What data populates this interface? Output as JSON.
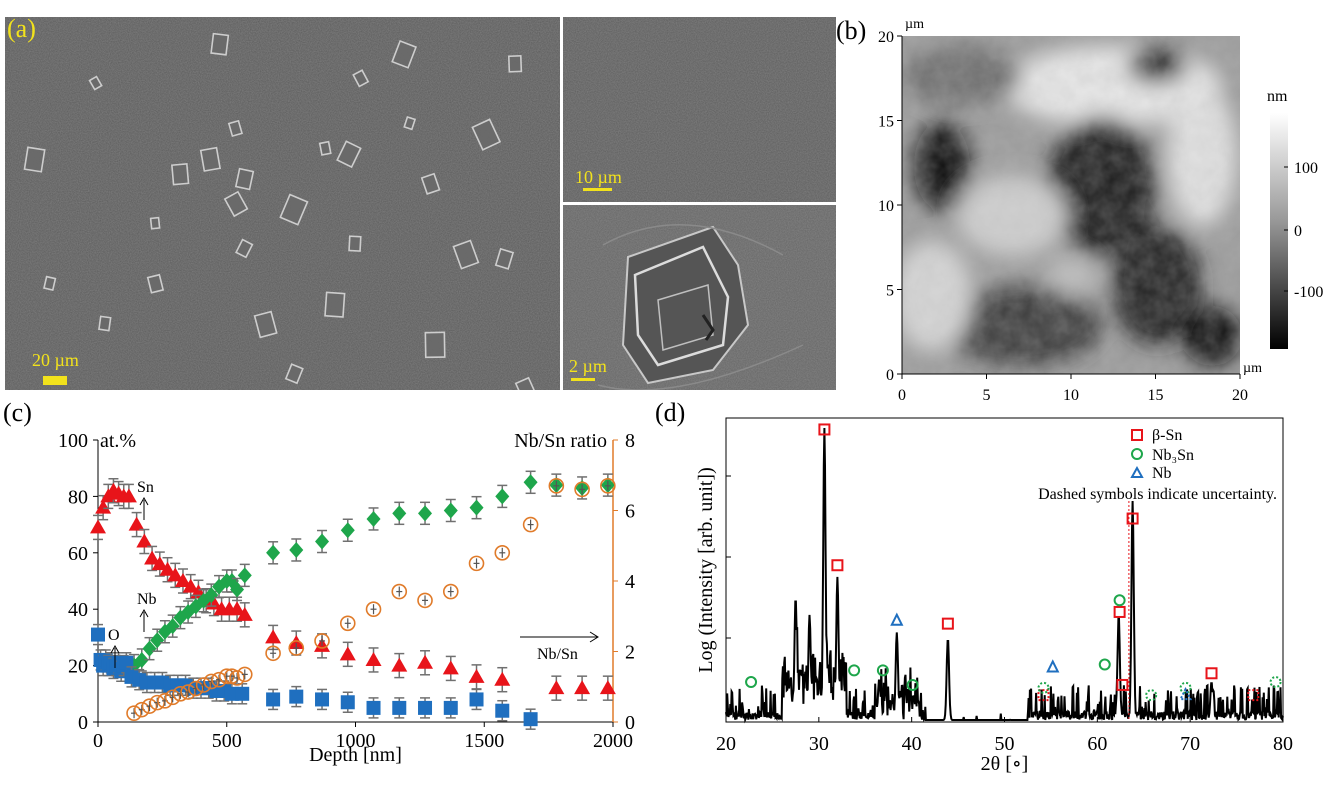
{
  "panels": {
    "a": {
      "label": "(a)",
      "scale_main": "20 µm",
      "scale_top_right": "10 µm",
      "scale_bottom_right": "2 µm"
    },
    "b": {
      "label": "(b)",
      "y_unit": "µm",
      "x_unit": "µm",
      "colorbar_unit": "nm",
      "x_ticks": [
        "0",
        "5",
        "10",
        "15",
        "20"
      ],
      "y_ticks": [
        "0",
        "5",
        "10",
        "15",
        "20"
      ],
      "colorbar_ticks": [
        "100",
        "0",
        "-100"
      ]
    },
    "c": {
      "label": "(c)"
    },
    "d": {
      "label": "(d)"
    }
  },
  "colors": {
    "sn": "#e8141a",
    "nb": "#1ea64b",
    "o": "#1f6fbf",
    "ratio": "#e07b2a",
    "err": "#707070",
    "beta_sn": "#e8141a",
    "nb3sn": "#1ea64b",
    "nb_marker": "#1f6fbf"
  },
  "chart_data": [
    {
      "type": "scatter",
      "panel": "c",
      "xlabel": "Depth [nm]",
      "ylabel": "at.%",
      "y2label": "Nb/Sn ratio",
      "xlim": [
        0,
        2000
      ],
      "ylim": [
        0,
        100
      ],
      "y2lim": [
        0,
        8
      ],
      "x_ticks": [
        "0",
        "500",
        "1000",
        "1500",
        "2000"
      ],
      "y_ticks": [
        "0",
        "20",
        "40",
        "60",
        "80",
        "100"
      ],
      "y2_ticks": [
        "0",
        "2",
        "4",
        "6",
        "8"
      ],
      "annotations": [
        "Sn",
        "Nb",
        "O",
        "Nb/Sn"
      ],
      "series": [
        {
          "name": "Sn",
          "marker": "triangle",
          "axis": "left",
          "x": [
            0,
            20,
            40,
            60,
            80,
            100,
            120,
            150,
            180,
            210,
            240,
            270,
            300,
            330,
            360,
            390,
            420,
            450,
            480,
            510,
            540,
            570,
            680,
            770,
            870,
            970,
            1070,
            1170,
            1270,
            1370,
            1470,
            1570,
            1780,
            1880,
            1980
          ],
          "y": [
            69,
            76,
            80,
            82,
            81,
            80,
            80,
            70,
            64,
            58,
            56,
            54,
            52,
            50,
            48,
            46,
            43,
            42,
            40,
            40,
            40,
            38,
            30,
            28,
            27,
            24,
            22,
            20,
            21,
            19,
            16,
            15,
            12,
            12,
            12
          ]
        },
        {
          "name": "Nb",
          "marker": "diamond",
          "axis": "left",
          "x": [
            140,
            170,
            200,
            230,
            260,
            290,
            320,
            350,
            380,
            410,
            440,
            470,
            500,
            520,
            540,
            570,
            680,
            770,
            870,
            970,
            1070,
            1170,
            1270,
            1370,
            1470,
            1570,
            1680,
            1780,
            1880,
            1980
          ],
          "y": [
            20,
            22,
            26,
            29,
            32,
            34,
            37,
            39,
            41,
            43,
            45,
            48,
            50,
            50,
            47,
            52,
            60,
            61,
            64,
            68,
            72,
            74,
            74,
            75,
            76,
            80,
            85,
            84,
            83,
            84
          ]
        },
        {
          "name": "O",
          "marker": "square",
          "axis": "left",
          "x": [
            0,
            10,
            20,
            30,
            40,
            50,
            60,
            70,
            80,
            90,
            100,
            110,
            130,
            160,
            190,
            220,
            250,
            280,
            310,
            340,
            370,
            400,
            430,
            460,
            490,
            520,
            560,
            680,
            770,
            870,
            970,
            1070,
            1170,
            1270,
            1370,
            1470,
            1570,
            1680
          ],
          "y": [
            31,
            22,
            20,
            22,
            20,
            21,
            19,
            20,
            21,
            18,
            20,
            21,
            16,
            15,
            14,
            14,
            14,
            13,
            13,
            13,
            12,
            12,
            12,
            11,
            11,
            10,
            10,
            8,
            9,
            8,
            7,
            5,
            5,
            5,
            5,
            8,
            4,
            1
          ]
        },
        {
          "name": "Nb/Sn ratio",
          "marker": "circle-plus",
          "axis": "right",
          "x": [
            140,
            170,
            200,
            230,
            260,
            290,
            320,
            350,
            380,
            410,
            440,
            470,
            500,
            520,
            540,
            570,
            680,
            770,
            870,
            970,
            1070,
            1170,
            1270,
            1370,
            1470,
            1570,
            1680,
            1780,
            1880,
            1980
          ],
          "y": [
            0.25,
            0.35,
            0.45,
            0.55,
            0.6,
            0.7,
            0.8,
            0.85,
            0.95,
            1.05,
            1.15,
            1.2,
            1.3,
            1.3,
            1.25,
            1.35,
            1.95,
            2.1,
            2.3,
            2.8,
            3.2,
            3.7,
            3.45,
            3.7,
            4.5,
            4.8,
            5.6,
            6.7,
            6.6,
            6.7
          ]
        }
      ]
    },
    {
      "type": "line",
      "panel": "d",
      "xlabel": "2θ [∘]",
      "ylabel": "Log (Intensity [arb. unit])",
      "xlim": [
        20,
        80
      ],
      "x_ticks": [
        "20",
        "30",
        "40",
        "50",
        "60",
        "70",
        "80"
      ],
      "legend": [
        "β-Sn",
        "Nb₃Sn",
        "Nb",
        "Dashed symbols indicate uncertainty."
      ],
      "legend_position": "top-right",
      "peaks": [
        {
          "x": 27.5,
          "h": 0.42
        },
        {
          "x": 29.0,
          "h": 0.36
        },
        {
          "x": 30.6,
          "h": 1.0
        },
        {
          "x": 32.0,
          "h": 0.49
        },
        {
          "x": 36.5,
          "h": 0.14
        },
        {
          "x": 38.4,
          "h": 0.3
        },
        {
          "x": 43.9,
          "h": 0.28
        },
        {
          "x": 62.3,
          "h": 0.36
        },
        {
          "x": 63.8,
          "h": 0.75
        },
        {
          "x": 72.3,
          "h": 0.13
        }
      ],
      "markers": [
        {
          "x": 30.6,
          "y": 0.995,
          "type": "square",
          "dashed": false
        },
        {
          "x": 32.0,
          "y": 0.53,
          "type": "square",
          "dashed": false
        },
        {
          "x": 43.9,
          "y": 0.33,
          "type": "square",
          "dashed": false
        },
        {
          "x": 62.4,
          "y": 0.37,
          "type": "square",
          "dashed": false
        },
        {
          "x": 62.7,
          "y": 0.12,
          "type": "square",
          "dashed": false
        },
        {
          "x": 63.8,
          "y": 0.69,
          "type": "square",
          "dashed": false
        },
        {
          "x": 72.3,
          "y": 0.16,
          "type": "square",
          "dashed": false
        },
        {
          "x": 54.2,
          "y": 0.085,
          "type": "square",
          "dashed": true
        },
        {
          "x": 76.8,
          "y": 0.085,
          "type": "square",
          "dashed": true
        },
        {
          "x": 22.7,
          "y": 0.13,
          "type": "circle",
          "dashed": false
        },
        {
          "x": 33.8,
          "y": 0.17,
          "type": "circle",
          "dashed": false
        },
        {
          "x": 36.9,
          "y": 0.17,
          "type": "circle",
          "dashed": false
        },
        {
          "x": 40.1,
          "y": 0.12,
          "type": "circle",
          "dashed": false
        },
        {
          "x": 60.8,
          "y": 0.19,
          "type": "circle",
          "dashed": false
        },
        {
          "x": 62.4,
          "y": 0.41,
          "type": "circle",
          "dashed": false
        },
        {
          "x": 54.2,
          "y": 0.11,
          "type": "circle",
          "dashed": true
        },
        {
          "x": 65.8,
          "y": 0.085,
          "type": "circle",
          "dashed": true
        },
        {
          "x": 69.5,
          "y": 0.11,
          "type": "circle",
          "dashed": true
        },
        {
          "x": 79.2,
          "y": 0.13,
          "type": "circle",
          "dashed": true
        },
        {
          "x": 38.4,
          "y": 0.34,
          "type": "triangle",
          "dashed": false
        },
        {
          "x": 55.2,
          "y": 0.18,
          "type": "triangle",
          "dashed": false
        },
        {
          "x": 69.5,
          "y": 0.085,
          "type": "triangle",
          "dashed": true
        }
      ]
    }
  ]
}
